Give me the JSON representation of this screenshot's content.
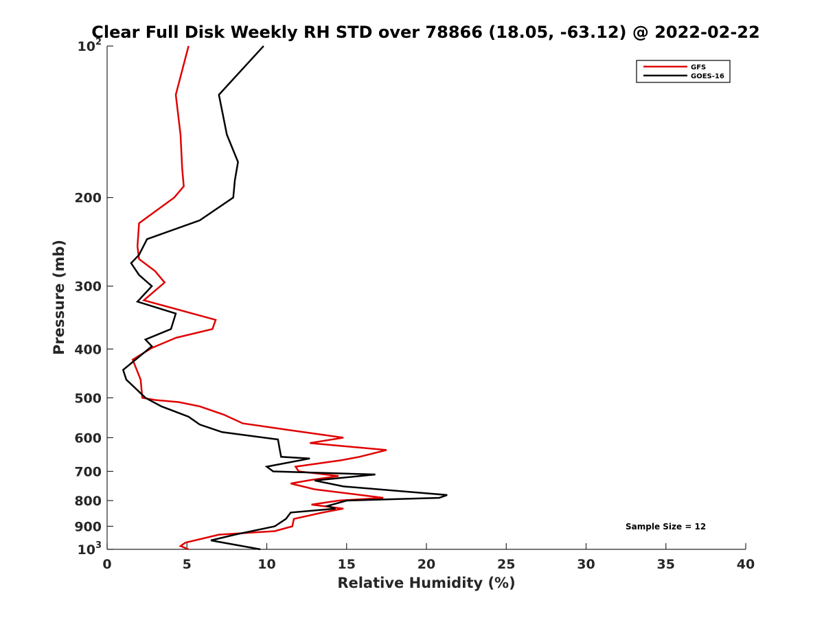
{
  "chart_data": {
    "type": "line",
    "title": "Clear Full Disk Weekly RH STD over 78866 (18.05, -63.12) @ 2022-02-22",
    "xlabel": "Relative Humidity (%)",
    "ylabel": "Pressure (mb)",
    "xlim": [
      0,
      40
    ],
    "ylim": [
      100,
      1000
    ],
    "y_scale": "log",
    "y_reversed": true,
    "grid": false,
    "legend_position": "top-right",
    "x_ticks": [
      "0",
      "5",
      "10",
      "15",
      "20",
      "25",
      "30",
      "35",
      "40"
    ],
    "y_ticks": [
      {
        "value": 100,
        "base": "10",
        "exp": "2"
      },
      {
        "value": 200,
        "label": "200"
      },
      {
        "value": 300,
        "label": "300"
      },
      {
        "value": 400,
        "label": "400"
      },
      {
        "value": 500,
        "label": "500"
      },
      {
        "value": 600,
        "label": "600"
      },
      {
        "value": 700,
        "label": "700"
      },
      {
        "value": 800,
        "label": "800"
      },
      {
        "value": 900,
        "label": "900"
      },
      {
        "value": 1000,
        "base": "10",
        "exp": "3"
      }
    ],
    "annotation": "Sample Size = 12",
    "series": [
      {
        "name": "GFS",
        "color": "#e00000",
        "points": [
          [
            5.1,
            100
          ],
          [
            4.3,
            125
          ],
          [
            4.6,
            150
          ],
          [
            4.7,
            175
          ],
          [
            4.8,
            190
          ],
          [
            4.2,
            200
          ],
          [
            2.0,
            225
          ],
          [
            1.9,
            250
          ],
          [
            2.0,
            265
          ],
          [
            3.0,
            280
          ],
          [
            3.6,
            295
          ],
          [
            2.3,
            320
          ],
          [
            6.8,
            350
          ],
          [
            6.6,
            365
          ],
          [
            4.3,
            380
          ],
          [
            2.8,
            398
          ],
          [
            1.6,
            420
          ],
          [
            2.1,
            460
          ],
          [
            2.2,
            500
          ],
          [
            3.0,
            505
          ],
          [
            4.5,
            510
          ],
          [
            5.8,
            520
          ],
          [
            7.3,
            540
          ],
          [
            8.5,
            562
          ],
          [
            11.5,
            580
          ],
          [
            14.8,
            600
          ],
          [
            12.7,
            615
          ],
          [
            17.5,
            635
          ],
          [
            15.8,
            655
          ],
          [
            14.7,
            665
          ],
          [
            11.8,
            685
          ],
          [
            12.0,
            700
          ],
          [
            14.5,
            715
          ],
          [
            12.8,
            728
          ],
          [
            11.5,
            740
          ],
          [
            13.0,
            760
          ],
          [
            17.3,
            790
          ],
          [
            14.5,
            800
          ],
          [
            12.8,
            815
          ],
          [
            14.8,
            830
          ],
          [
            13.5,
            845
          ],
          [
            11.7,
            870
          ],
          [
            11.6,
            900
          ],
          [
            10.5,
            920
          ],
          [
            7.0,
            935
          ],
          [
            4.9,
            970
          ],
          [
            4.6,
            985
          ],
          [
            5.1,
            1000
          ]
        ]
      },
      {
        "name": "GOES-16",
        "color": "#000000",
        "points": [
          [
            9.8,
            100
          ],
          [
            7.0,
            125
          ],
          [
            7.5,
            150
          ],
          [
            8.2,
            170
          ],
          [
            8.0,
            185
          ],
          [
            7.9,
            200
          ],
          [
            5.8,
            222
          ],
          [
            2.5,
            242
          ],
          [
            2.0,
            260
          ],
          [
            1.5,
            270
          ],
          [
            2.0,
            285
          ],
          [
            2.8,
            300
          ],
          [
            1.9,
            322
          ],
          [
            4.3,
            340
          ],
          [
            4.0,
            365
          ],
          [
            2.4,
            383
          ],
          [
            2.8,
            395
          ],
          [
            1.0,
            440
          ],
          [
            1.2,
            460
          ],
          [
            2.4,
            500
          ],
          [
            3.4,
            520
          ],
          [
            5.1,
            545
          ],
          [
            5.8,
            565
          ],
          [
            7.2,
            585
          ],
          [
            10.7,
            605
          ],
          [
            10.8,
            630
          ],
          [
            10.9,
            655
          ],
          [
            12.7,
            660
          ],
          [
            10.0,
            685
          ],
          [
            10.4,
            700
          ],
          [
            16.8,
            710
          ],
          [
            13.0,
            730
          ],
          [
            14.8,
            750
          ],
          [
            21.3,
            780
          ],
          [
            20.8,
            790
          ],
          [
            15.0,
            800
          ],
          [
            13.8,
            820
          ],
          [
            14.3,
            830
          ],
          [
            11.5,
            845
          ],
          [
            11.2,
            870
          ],
          [
            10.5,
            900
          ],
          [
            8.0,
            935
          ],
          [
            6.5,
            960
          ],
          [
            9.6,
            1000
          ]
        ]
      }
    ]
  }
}
